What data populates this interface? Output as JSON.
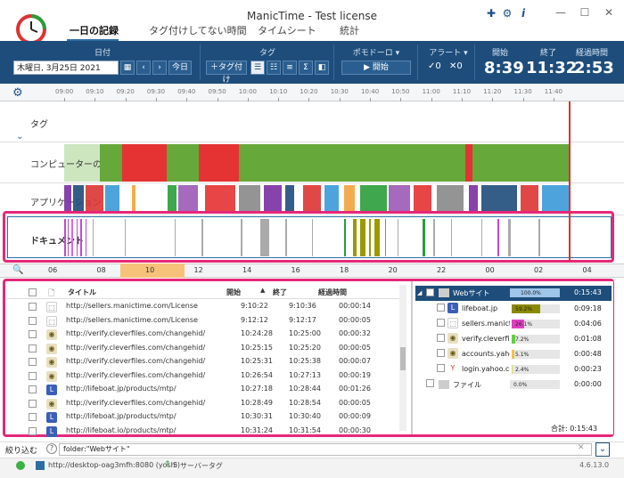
{
  "app": {
    "title": "ManicTime - Test license",
    "tabs": [
      "一日の記録",
      "タグ付けしてない時間",
      "タイムシート",
      "統計"
    ]
  },
  "ribbon": {
    "date_group_label": "日付",
    "date_value": "木曜日, 3月25日 2021",
    "today_label": "今日",
    "tag_group_label": "タグ",
    "add_tag_label": "タグ付け",
    "pomodoro_label": "ポモドーロ",
    "start_label": "開始",
    "alert_label": "アラート",
    "alert_ok_count": "0",
    "alert_x_count": "0",
    "start_header": "開始",
    "end_header": "終了",
    "elapsed_header": "経過時間",
    "start_time": "8:39",
    "end_time": "11:32",
    "elapsed_time": "2:53"
  },
  "timeline": {
    "ruler_ticks": [
      "09:00",
      "09:10",
      "09:20",
      "09:30",
      "09:40",
      "09:50",
      "10:00",
      "10:10",
      "10:20",
      "10:30",
      "10:40",
      "10:50",
      "11:00",
      "11:10",
      "11:20",
      "11:30",
      "11:40"
    ],
    "bands": {
      "tags": "タグ",
      "computer": "コンピューターの使用",
      "apps": "アプリケーション",
      "documents": "ドキュメント"
    }
  },
  "overview": {
    "ticks": [
      "06",
      "08",
      "10",
      "12",
      "14",
      "16",
      "18",
      "20",
      "22",
      "00",
      "02",
      "04"
    ]
  },
  "table": {
    "headers": {
      "title": "タイトル",
      "start": "開始",
      "end": "終了",
      "duration": "経過時間"
    },
    "rows": [
      {
        "icon": "manictime-icon",
        "title": "http://sellers.manictime.com/License",
        "start": "9:10:22",
        "end": "9:10:36",
        "duration": "00:00:14"
      },
      {
        "icon": "manictime-icon",
        "title": "http://sellers.manictime.com/License",
        "start": "9:12:12",
        "end": "9:12:17",
        "duration": "00:00:05"
      },
      {
        "icon": "cleverfiles-icon",
        "title": "http://verify.cleverfiles.com/changehid/",
        "start": "10:24:28",
        "end": "10:25:00",
        "duration": "00:00:32"
      },
      {
        "icon": "cleverfiles-icon",
        "title": "http://verify.cleverfiles.com/changehid/",
        "start": "10:25:15",
        "end": "10:25:20",
        "duration": "00:00:05"
      },
      {
        "icon": "cleverfiles-icon",
        "title": "http://verify.cleverfiles.com/changehid/",
        "start": "10:25:31",
        "end": "10:25:38",
        "duration": "00:00:07"
      },
      {
        "icon": "cleverfiles-icon",
        "title": "http://verify.cleverfiles.com/changehid/",
        "start": "10:26:54",
        "end": "10:27:13",
        "duration": "00:00:19"
      },
      {
        "icon": "lifeboat-icon",
        "title": "http://lifeboat.jp/products/mtp/",
        "start": "10:27:18",
        "end": "10:28:44",
        "duration": "00:01:26"
      },
      {
        "icon": "cleverfiles-icon",
        "title": "http://verify.cleverfiles.com/changehid/",
        "start": "10:28:49",
        "end": "10:28:54",
        "duration": "00:00:05"
      },
      {
        "icon": "lifeboat-icon",
        "title": "http://lifeboat.jp/products/mtp/",
        "start": "10:30:31",
        "end": "10:30:40",
        "duration": "00:00:09"
      },
      {
        "icon": "lifeboat-icon",
        "title": "http://lifeboat.io/products/mtp/",
        "start": "10:31:24",
        "end": "10:31:54",
        "duration": "00:00:30"
      }
    ]
  },
  "tree": {
    "root": {
      "label": "Webサイト",
      "percent_text": "100.0%",
      "percent": 1.0,
      "time": "0:15:43"
    },
    "children": [
      {
        "label": "lifeboat.jp",
        "percent_text": "59.2%",
        "percent": 0.592,
        "color": "#8a8a00",
        "time": "0:09:18",
        "icon": "lifeboat-icon"
      },
      {
        "label": "sellers.manicti",
        "percent_text": "26.1%",
        "percent": 0.261,
        "color": "#e040c0",
        "time": "0:04:06",
        "icon": "manictime-icon"
      },
      {
        "label": "verify.cleverfile",
        "percent_text": "7.2%",
        "percent": 0.072,
        "color": "#66cc44",
        "time": "0:01:08",
        "icon": "cleverfiles-icon"
      },
      {
        "label": "accounts.yahc",
        "percent_text": "5.1%",
        "percent": 0.051,
        "color": "#f2c24a",
        "time": "0:00:48",
        "icon": "cleverfiles-icon"
      },
      {
        "label": "login.yahoo.cc",
        "percent_text": "2.4%",
        "percent": 0.024,
        "color": "#d9d966",
        "time": "0:00:23",
        "icon": "yahoo-icon"
      }
    ],
    "file_item": {
      "label": "ファイル",
      "percent_text": "0.0%",
      "time": "0:00:00"
    },
    "total_label": "合計: 0:15:43"
  },
  "filter": {
    "label": "絞り込む",
    "value": "folder:\"Webサイト\""
  },
  "status": {
    "server": "http://desktop-oag3mfh:8080 (yoshi)",
    "server_tag_count": "5",
    "server_tag_label": "サーバータグ",
    "version": "4.6.13.0"
  },
  "colors": {
    "ribbon": "#1e4d7b",
    "highlight": "#e6287a",
    "active_green": "#66a83a",
    "away_red": "#e53232"
  }
}
